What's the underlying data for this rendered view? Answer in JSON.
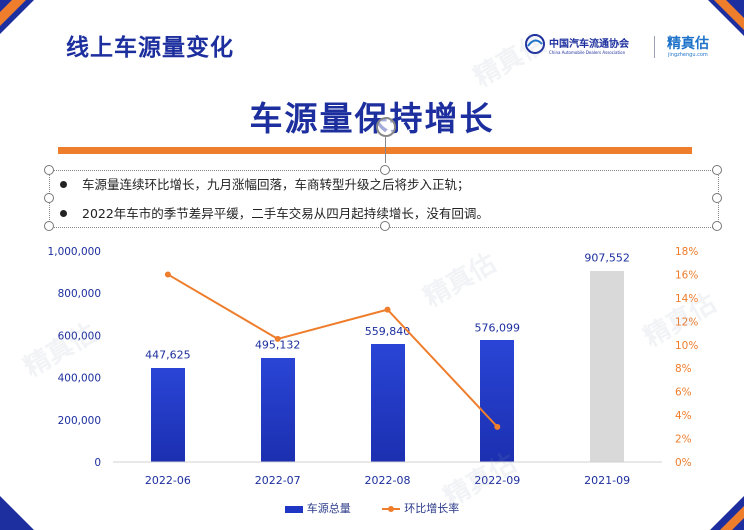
{
  "slide": {
    "title": "线上车源量变化",
    "headline": "车源量保持增长",
    "bullets": [
      "车源量连续环比增长，九月涨幅回落，车商转型升级之后将步入正轨；",
      "2022年车市的季节差异平缓，二手车交易从四月起持续增长，没有回调。"
    ],
    "logo_cada": "中国汽车流通协会",
    "logo_cada_sub": "China Automobile Dealers Association",
    "logo_jzg": "精真估",
    "logo_jzg_sub": "jingzhengu.com",
    "watermark": "精真估"
  },
  "colors": {
    "brand_blue": "#1d2f9e",
    "bar_blue": "#1f36c4",
    "bar_grey": "#d9d9d9",
    "accent_orange": "#ee7d2c"
  },
  "chart_data": {
    "type": "bar",
    "categories": [
      "2022-06",
      "2022-07",
      "2022-08",
      "2022-09",
      "2021-09"
    ],
    "series": [
      {
        "name": "车源总量",
        "type": "bar",
        "axis": "left",
        "values": [
          447625,
          495132,
          559840,
          576099,
          907552
        ]
      },
      {
        "name": "环比增长率",
        "type": "line",
        "axis": "right",
        "values": [
          16.0,
          10.5,
          13.0,
          3.0,
          null
        ]
      }
    ],
    "data_labels": [
      "447,625",
      "495,132",
      "559,840",
      "576,099",
      "907,552"
    ],
    "y_left": {
      "min": 0,
      "max": 1000000,
      "ticks": [
        "0",
        "200,000",
        "400,000",
        "600,000",
        "800,000",
        "1,000,000"
      ]
    },
    "y_right": {
      "min": 0,
      "max": 18,
      "unit": "%",
      "ticks": [
        "0%",
        "2%",
        "4%",
        "6%",
        "8%",
        "10%",
        "12%",
        "14%",
        "16%",
        "18%"
      ]
    },
    "highlighted_category": "2021-09",
    "legend_position": "bottom",
    "grid": false
  }
}
